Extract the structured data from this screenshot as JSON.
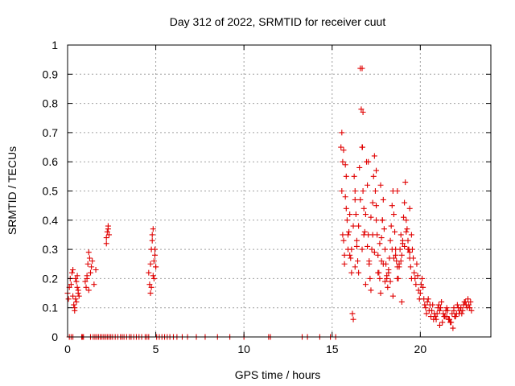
{
  "chart_data": {
    "type": "scatter",
    "title": "Day 312 of 2022, SRMTID for receiver cuut",
    "xlabel": "GPS time / hours",
    "ylabel": "SRMTID / TECUs",
    "xlim": [
      0,
      24
    ],
    "ylim": [
      0,
      1
    ],
    "xticks": [
      0,
      5,
      10,
      15,
      20
    ],
    "xtick_labels": [
      "0",
      "5",
      "10",
      "15",
      "20"
    ],
    "yticks": [
      0,
      0.1,
      0.2,
      0.3,
      0.4,
      0.5,
      0.6,
      0.7,
      0.8,
      0.9,
      1
    ],
    "ytick_labels": [
      "0",
      "0.1",
      "0.2",
      "0.3",
      "0.4",
      "0.5",
      "0.6",
      "0.7",
      "0.8",
      "0.9",
      "1"
    ],
    "grid": true,
    "marker": "+",
    "series": [
      {
        "name": "SRMTID",
        "color": "#e00000",
        "x": [
          0.0,
          0.05,
          0.1,
          0.15,
          0.2,
          0.25,
          0.3,
          0.35,
          0.4,
          0.45,
          0.5,
          0.55,
          0.6,
          0.65,
          0.3,
          0.4,
          0.5,
          0.55,
          0.45,
          0.6,
          1.0,
          1.05,
          1.1,
          1.15,
          1.2,
          1.25,
          1.3,
          1.35,
          1.4,
          1.5,
          1.6,
          1.1,
          1.2,
          2.2,
          2.25,
          2.3,
          2.35,
          2.2,
          2.3,
          4.6,
          4.65,
          4.7,
          4.75,
          4.8,
          4.85,
          4.9,
          4.95,
          5.0,
          4.7,
          4.8,
          4.9,
          4.85,
          4.75,
          4.95,
          5.0,
          15.5,
          15.55,
          15.6,
          15.65,
          15.7,
          15.75,
          15.8,
          15.85,
          15.9,
          15.95,
          16.0,
          16.05,
          16.1,
          16.15,
          16.2,
          16.25,
          16.3,
          16.35,
          16.4,
          16.45,
          16.5,
          16.55,
          16.6,
          16.65,
          16.7,
          16.75,
          16.8,
          16.85,
          16.9,
          16.95,
          17.0,
          17.05,
          17.1,
          17.15,
          17.2,
          17.25,
          17.3,
          17.35,
          17.4,
          17.45,
          17.5,
          17.55,
          17.6,
          17.65,
          17.7,
          17.75,
          17.8,
          17.85,
          17.9,
          17.95,
          18.0,
          18.05,
          18.1,
          18.15,
          18.2,
          18.25,
          18.3,
          18.35,
          18.4,
          18.45,
          18.5,
          18.55,
          18.6,
          18.65,
          18.7,
          18.75,
          18.8,
          18.85,
          18.9,
          18.95,
          19.0,
          19.05,
          19.1,
          19.15,
          19.2,
          19.25,
          19.3,
          19.35,
          19.4,
          19.45,
          19.5,
          19.55,
          19.6,
          19.65,
          19.7,
          19.75,
          19.8,
          19.85,
          19.9,
          19.95,
          20.0,
          20.05,
          20.1,
          20.15,
          20.2,
          20.25,
          15.6,
          15.8,
          16.0,
          16.2,
          16.4,
          16.6,
          16.8,
          17.0,
          17.2,
          17.4,
          17.6,
          17.8,
          18.0,
          18.2,
          18.4,
          18.6,
          18.8,
          19.0,
          19.2,
          19.4,
          15.7,
          15.9,
          16.1,
          16.3,
          16.5,
          16.7,
          16.9,
          17.1,
          17.3,
          17.5,
          17.7,
          17.9,
          18.1,
          18.3,
          18.5,
          18.7,
          18.9,
          19.1,
          19.3,
          19.5,
          15.65,
          15.75,
          15.55,
          16.7,
          16.75,
          16.72,
          17.05,
          17.5,
          17.75,
          18.7,
          19.4,
          18.95,
          16.3,
          17.85,
          18.45,
          20.3,
          20.4,
          20.5,
          20.6,
          20.7,
          20.8,
          20.9,
          21.0,
          21.1,
          21.2,
          21.3,
          21.4,
          21.5,
          21.6,
          21.7,
          21.8,
          21.9,
          22.0,
          22.1,
          22.2,
          22.3,
          22.4,
          22.5,
          22.6,
          22.7,
          22.8,
          22.9,
          20.35,
          20.55,
          20.75,
          20.95,
          21.15,
          21.35,
          21.55,
          21.75,
          21.95,
          22.15,
          22.35,
          22.55,
          22.75,
          20.45,
          20.65,
          20.85,
          21.05,
          21.25,
          21.45,
          21.65,
          21.85,
          22.05,
          22.25,
          22.45,
          22.65,
          22.85,
          21.1,
          21.5,
          21.9,
          0.1,
          0.2,
          0.3,
          0.8,
          0.85,
          0.9,
          1.3,
          1.45,
          1.55,
          1.65,
          1.75,
          1.85,
          1.95,
          2.05,
          2.15,
          2.25,
          2.35,
          2.45,
          2.55,
          2.7,
          2.85,
          3.0,
          3.1,
          3.2,
          3.35,
          3.5,
          3.6,
          3.75,
          3.9,
          4.05,
          4.2,
          4.4,
          4.5,
          4.6,
          5.05,
          5.2,
          5.35,
          5.5,
          5.65,
          5.8,
          6.0,
          6.2,
          6.5,
          6.8,
          7.3,
          7.8,
          8.5,
          9.2,
          10.0,
          11.4,
          11.5,
          13.3,
          13.6,
          14.3,
          14.9,
          15.2
        ],
        "y": [
          0.15,
          0.13,
          0.17,
          0.2,
          0.18,
          0.22,
          0.14,
          0.11,
          0.1,
          0.13,
          0.19,
          0.21,
          0.16,
          0.14,
          0.23,
          0.09,
          0.12,
          0.17,
          0.2,
          0.15,
          0.19,
          0.17,
          0.21,
          0.25,
          0.29,
          0.27,
          0.22,
          0.24,
          0.26,
          0.18,
          0.23,
          0.2,
          0.16,
          0.34,
          0.36,
          0.38,
          0.35,
          0.32,
          0.37,
          0.22,
          0.18,
          0.25,
          0.3,
          0.35,
          0.37,
          0.2,
          0.28,
          0.24,
          0.15,
          0.33,
          0.26,
          0.21,
          0.17,
          0.3,
          0.24,
          0.65,
          0.7,
          0.35,
          0.33,
          0.25,
          0.48,
          0.55,
          0.4,
          0.3,
          0.36,
          0.28,
          0.27,
          0.22,
          0.08,
          0.06,
          0.55,
          0.5,
          0.42,
          0.31,
          0.26,
          0.38,
          0.58,
          0.92,
          0.78,
          0.65,
          0.5,
          0.44,
          0.36,
          0.42,
          0.6,
          0.52,
          0.35,
          0.25,
          0.2,
          0.16,
          0.3,
          0.46,
          0.55,
          0.62,
          0.5,
          0.45,
          0.35,
          0.28,
          0.22,
          0.2,
          0.15,
          0.34,
          0.4,
          0.47,
          0.37,
          0.3,
          0.25,
          0.2,
          0.17,
          0.22,
          0.27,
          0.33,
          0.38,
          0.45,
          0.5,
          0.42,
          0.36,
          0.3,
          0.26,
          0.24,
          0.2,
          0.25,
          0.3,
          0.35,
          0.28,
          0.32,
          0.41,
          0.46,
          0.53,
          0.4,
          0.37,
          0.33,
          0.3,
          0.27,
          0.24,
          0.35,
          0.3,
          0.27,
          0.22,
          0.2,
          0.18,
          0.25,
          0.21,
          0.16,
          0.13,
          0.15,
          0.18,
          0.2,
          0.17,
          0.13,
          0.11,
          0.6,
          0.44,
          0.42,
          0.38,
          0.33,
          0.47,
          0.35,
          0.31,
          0.41,
          0.29,
          0.22,
          0.26,
          0.19,
          0.23,
          0.3,
          0.28,
          0.24,
          0.33,
          0.36,
          0.29,
          0.28,
          0.35,
          0.3,
          0.24,
          0.22,
          0.3,
          0.18,
          0.26,
          0.35,
          0.4,
          0.32,
          0.25,
          0.21,
          0.19,
          0.27,
          0.2,
          0.26,
          0.31,
          0.3,
          0.2,
          0.64,
          0.59,
          0.5,
          0.92,
          0.77,
          0.65,
          0.6,
          0.57,
          0.52,
          0.5,
          0.44,
          0.12,
          0.47,
          0.4,
          0.14,
          0.1,
          0.12,
          0.09,
          0.07,
          0.11,
          0.08,
          0.06,
          0.1,
          0.09,
          0.12,
          0.08,
          0.07,
          0.1,
          0.06,
          0.05,
          0.08,
          0.09,
          0.07,
          0.11,
          0.08,
          0.1,
          0.09,
          0.12,
          0.11,
          0.13,
          0.1,
          0.09,
          0.08,
          0.11,
          0.06,
          0.08,
          0.1,
          0.07,
          0.09,
          0.05,
          0.07,
          0.1,
          0.08,
          0.12,
          0.11,
          0.13,
          0.09,
          0.07,
          0.11,
          0.05,
          0.09,
          0.06,
          0.03,
          0.08,
          0.09,
          0.11,
          0.1,
          0.12,
          0.04,
          0.07,
          0.1,
          0.0,
          0.0,
          0.0,
          0.0,
          0.0,
          0.0,
          0.0,
          0.0,
          0.0,
          0.0,
          0.0,
          0.0,
          0.0,
          0.0,
          0.0,
          0.0,
          0.0,
          0.0,
          0.0,
          0.0,
          0.0,
          0.0,
          0.0,
          0.0,
          0.0,
          0.0,
          0.0,
          0.0,
          0.0,
          0.0,
          0.0,
          0.0,
          0.0,
          0.0,
          0.0,
          0.0,
          0.0,
          0.0,
          0.0,
          0.0,
          0.0,
          0.0,
          0.0,
          0.0,
          0.0,
          0.0,
          0.0,
          0.0,
          0.0,
          0.0,
          0.0,
          0.0,
          0.0,
          0.0,
          0.0,
          0.0
        ]
      }
    ]
  }
}
